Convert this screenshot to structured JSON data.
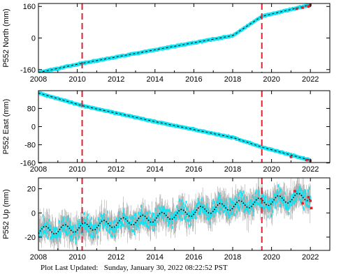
{
  "footer": {
    "label": "Plot Last Updated:",
    "timestamp": "Sunday, January 30, 2022 08:22:52 PST"
  },
  "colors": {
    "observation": "#11e3f2",
    "error_bar_up": "#a8a8a8",
    "outlier": "#e0202a",
    "event_line": "#e02030",
    "model_fit": "#000000"
  },
  "event_dates": [
    2010.25,
    2019.5
  ],
  "chart_data": [
    {
      "type": "scatter",
      "ylabel": "P552 North (mm)",
      "xlim": [
        2008,
        2023
      ],
      "ylim": [
        -175,
        175
      ],
      "x_ticks": [
        2008,
        2010,
        2012,
        2014,
        2016,
        2018,
        2020,
        2022
      ],
      "y_ticks": [
        -160,
        0,
        160
      ],
      "series": [
        {
          "kind": "observations",
          "x": [
            2008.0,
            2010.25,
            2014.0,
            2018.0,
            2019.5,
            2022.0
          ],
          "y": [
            -175,
            -128,
            -60,
            12,
            110,
            168
          ]
        },
        {
          "kind": "outliers",
          "x": [
            2021.3,
            2021.6,
            2021.9,
            2022.0
          ],
          "y": [
            148,
            154,
            160,
            168
          ]
        }
      ]
    },
    {
      "type": "scatter",
      "ylabel": "P552 East (mm)",
      "xlim": [
        2008,
        2023
      ],
      "ylim": [
        -158,
        158
      ],
      "x_ticks": [
        2008,
        2010,
        2012,
        2014,
        2016,
        2018,
        2020,
        2022
      ],
      "y_ticks": [
        -160,
        -80,
        0,
        80
      ],
      "series": [
        {
          "kind": "observations",
          "x": [
            2008.0,
            2010.25,
            2014.0,
            2018.0,
            2019.5,
            2022.0
          ],
          "y": [
            148,
            92,
            22,
            -48,
            -90,
            -148
          ]
        },
        {
          "kind": "outliers",
          "x": [
            2021.0,
            2021.8,
            2022.0
          ],
          "y": [
            -133,
            -147,
            -150
          ]
        }
      ]
    },
    {
      "type": "scatter",
      "ylabel": "P552 Up (mm)",
      "xlim": [
        2008,
        2023
      ],
      "ylim": [
        -31,
        29
      ],
      "x_ticks": [
        2008,
        2010,
        2012,
        2014,
        2016,
        2018,
        2020,
        2022
      ],
      "y_ticks": [
        -20,
        0,
        20
      ],
      "series": [
        {
          "kind": "observations",
          "x": [
            2008.0,
            2010.25,
            2014.0,
            2018.0,
            2022.0
          ],
          "y": [
            -15,
            -12,
            -4,
            6,
            14
          ]
        },
        {
          "kind": "seasonal_fit",
          "x": [
            2008.0,
            2010.25,
            2014.0,
            2018.0,
            2022.0
          ],
          "y": [
            -15,
            -12,
            -4,
            6,
            14
          ],
          "annual_amplitude_mm": 3.5
        },
        {
          "kind": "outliers",
          "x": [
            2021.2,
            2021.6,
            2021.9,
            2022.0,
            2022.05
          ],
          "y": [
            18,
            8,
            13,
            10,
            4
          ]
        }
      ]
    }
  ]
}
